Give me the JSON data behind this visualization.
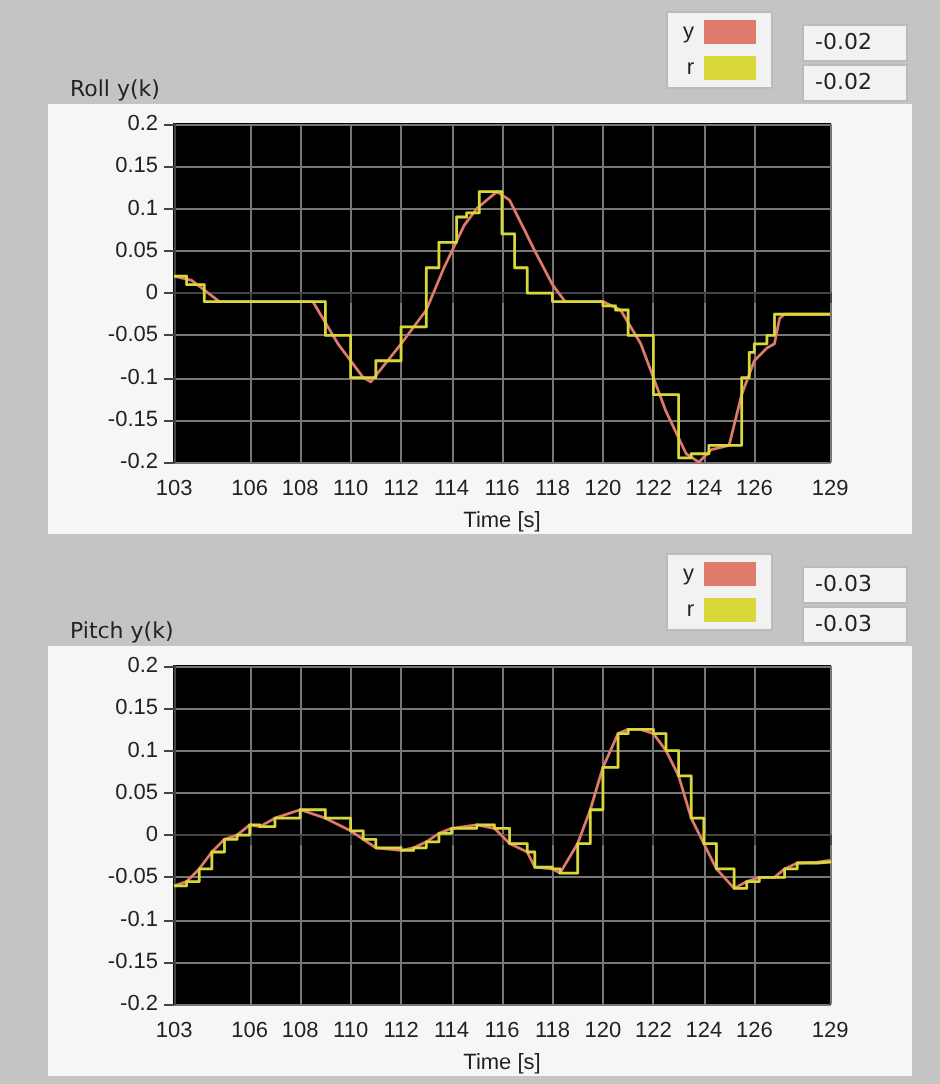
{
  "chart_data": [
    {
      "type": "line",
      "title": "Roll y(k)",
      "xlabel": "Time [s]",
      "xlim": [
        103,
        129
      ],
      "xticks": [
        103,
        106,
        108,
        110,
        112,
        114,
        116,
        118,
        120,
        122,
        124,
        126,
        129
      ],
      "ylim": [
        -0.2,
        0.2
      ],
      "yticks": [
        -0.2,
        -0.15,
        -0.1,
        -0.05,
        0,
        0.05,
        0.1,
        0.15,
        0.2
      ],
      "grid": true,
      "legend": "top right",
      "annotations": [
        "-0.02",
        "-0.02"
      ],
      "series": [
        {
          "name": "y",
          "type": "line",
          "color": "#e07a6a",
          "x": [
            103,
            103.7,
            104.8,
            106,
            108.5,
            109.5,
            110.5,
            110.8,
            112,
            113,
            113.7,
            114.5,
            115,
            115.8,
            116.3,
            116.8,
            117.3,
            118,
            118.5,
            120,
            120.7,
            121.5,
            122.5,
            123.3,
            123.8,
            124.3,
            125,
            125.5,
            126,
            126.5,
            126.8,
            127,
            127.2,
            129
          ],
          "values": [
            0.02,
            0.015,
            -0.01,
            -0.01,
            -0.01,
            -0.06,
            -0.1,
            -0.105,
            -0.06,
            -0.02,
            0.03,
            0.08,
            0.1,
            0.12,
            0.11,
            0.08,
            0.05,
            0.01,
            -0.01,
            -0.01,
            -0.02,
            -0.06,
            -0.14,
            -0.19,
            -0.2,
            -0.185,
            -0.18,
            -0.12,
            -0.08,
            -0.065,
            -0.06,
            -0.03,
            -0.025,
            -0.025
          ]
        },
        {
          "name": "r",
          "type": "step",
          "color": "#d8d83a",
          "x": [
            103,
            103.5,
            104.2,
            106,
            108,
            109,
            110,
            110.3,
            111,
            112,
            113,
            113.5,
            114.2,
            114.6,
            115.1,
            115.8,
            116,
            116.5,
            117,
            118,
            119,
            120,
            120.5,
            121,
            122,
            123,
            123.5,
            124.2,
            125.2,
            125.5,
            125.8,
            126,
            126.5,
            126.8,
            129
          ],
          "values": [
            0.02,
            0.01,
            -0.01,
            -0.01,
            -0.01,
            -0.05,
            -0.1,
            -0.1,
            -0.08,
            -0.04,
            0.03,
            0.06,
            0.09,
            0.095,
            0.12,
            0.12,
            0.07,
            0.03,
            0,
            -0.01,
            -0.01,
            -0.015,
            -0.02,
            -0.05,
            -0.12,
            -0.195,
            -0.19,
            -0.18,
            -0.18,
            -0.1,
            -0.07,
            -0.06,
            -0.05,
            -0.025,
            -0.025
          ]
        }
      ]
    },
    {
      "type": "line",
      "title": "Pitch y(k)",
      "xlabel": "Time [s]",
      "xlim": [
        103,
        129
      ],
      "xticks": [
        103,
        106,
        108,
        110,
        112,
        114,
        116,
        118,
        120,
        122,
        124,
        126,
        129
      ],
      "ylim": [
        -0.2,
        0.2
      ],
      "yticks": [
        -0.2,
        -0.15,
        -0.1,
        -0.05,
        0,
        0.05,
        0.1,
        0.15,
        0.2
      ],
      "grid": true,
      "legend": "top right",
      "annotations": [
        "-0.03",
        "-0.03"
      ],
      "series": [
        {
          "name": "y",
          "type": "line",
          "color": "#e07a6a",
          "x": [
            103,
            103.5,
            104,
            104.5,
            105,
            105.5,
            106,
            106.4,
            107,
            108,
            109,
            110,
            110.5,
            111,
            112,
            112.5,
            113,
            113.5,
            114,
            115,
            115.7,
            116.3,
            117,
            117.3,
            118,
            118.3,
            119,
            119.5,
            120,
            120.6,
            121,
            121.5,
            122,
            122.5,
            123,
            123.5,
            124,
            124.5,
            125.2,
            125.7,
            126.2,
            126.8,
            127.2,
            127.7,
            128.5,
            129
          ],
          "values": [
            -0.06,
            -0.055,
            -0.04,
            -0.02,
            -0.005,
            0,
            0.012,
            0.01,
            0.02,
            0.03,
            0.02,
            0.005,
            -0.005,
            -0.015,
            -0.018,
            -0.015,
            -0.008,
            0.002,
            0.008,
            0.012,
            0.008,
            -0.01,
            -0.02,
            -0.038,
            -0.04,
            -0.045,
            -0.01,
            0.03,
            0.08,
            0.12,
            0.125,
            0.125,
            0.12,
            0.1,
            0.07,
            0.02,
            -0.01,
            -0.04,
            -0.063,
            -0.055,
            -0.05,
            -0.05,
            -0.04,
            -0.033,
            -0.032,
            -0.03
          ]
        },
        {
          "name": "r",
          "type": "step",
          "color": "#d8d83a",
          "x": [
            103,
            103.5,
            104,
            104.5,
            105,
            105.5,
            106,
            106.4,
            107,
            108,
            109,
            110,
            110.5,
            111,
            112,
            112.5,
            113,
            113.5,
            114,
            115,
            115.7,
            116.3,
            117,
            117.3,
            118,
            118.3,
            119,
            119.5,
            120,
            120.6,
            121,
            121.5,
            122,
            122.5,
            123,
            123.5,
            124,
            124.5,
            125.2,
            125.7,
            126.2,
            126.8,
            127.2,
            127.7,
            128.5,
            129
          ],
          "values": [
            -0.06,
            -0.055,
            -0.04,
            -0.02,
            -0.005,
            0,
            0.012,
            0.01,
            0.02,
            0.03,
            0.02,
            0.005,
            -0.005,
            -0.015,
            -0.018,
            -0.015,
            -0.008,
            0.002,
            0.008,
            0.012,
            0.008,
            -0.01,
            -0.02,
            -0.038,
            -0.04,
            -0.045,
            -0.01,
            0.03,
            0.08,
            0.12,
            0.125,
            0.125,
            0.12,
            0.1,
            0.07,
            0.02,
            -0.01,
            -0.04,
            -0.063,
            -0.055,
            -0.05,
            -0.05,
            -0.04,
            -0.033,
            -0.032,
            -0.03
          ]
        }
      ]
    }
  ]
}
